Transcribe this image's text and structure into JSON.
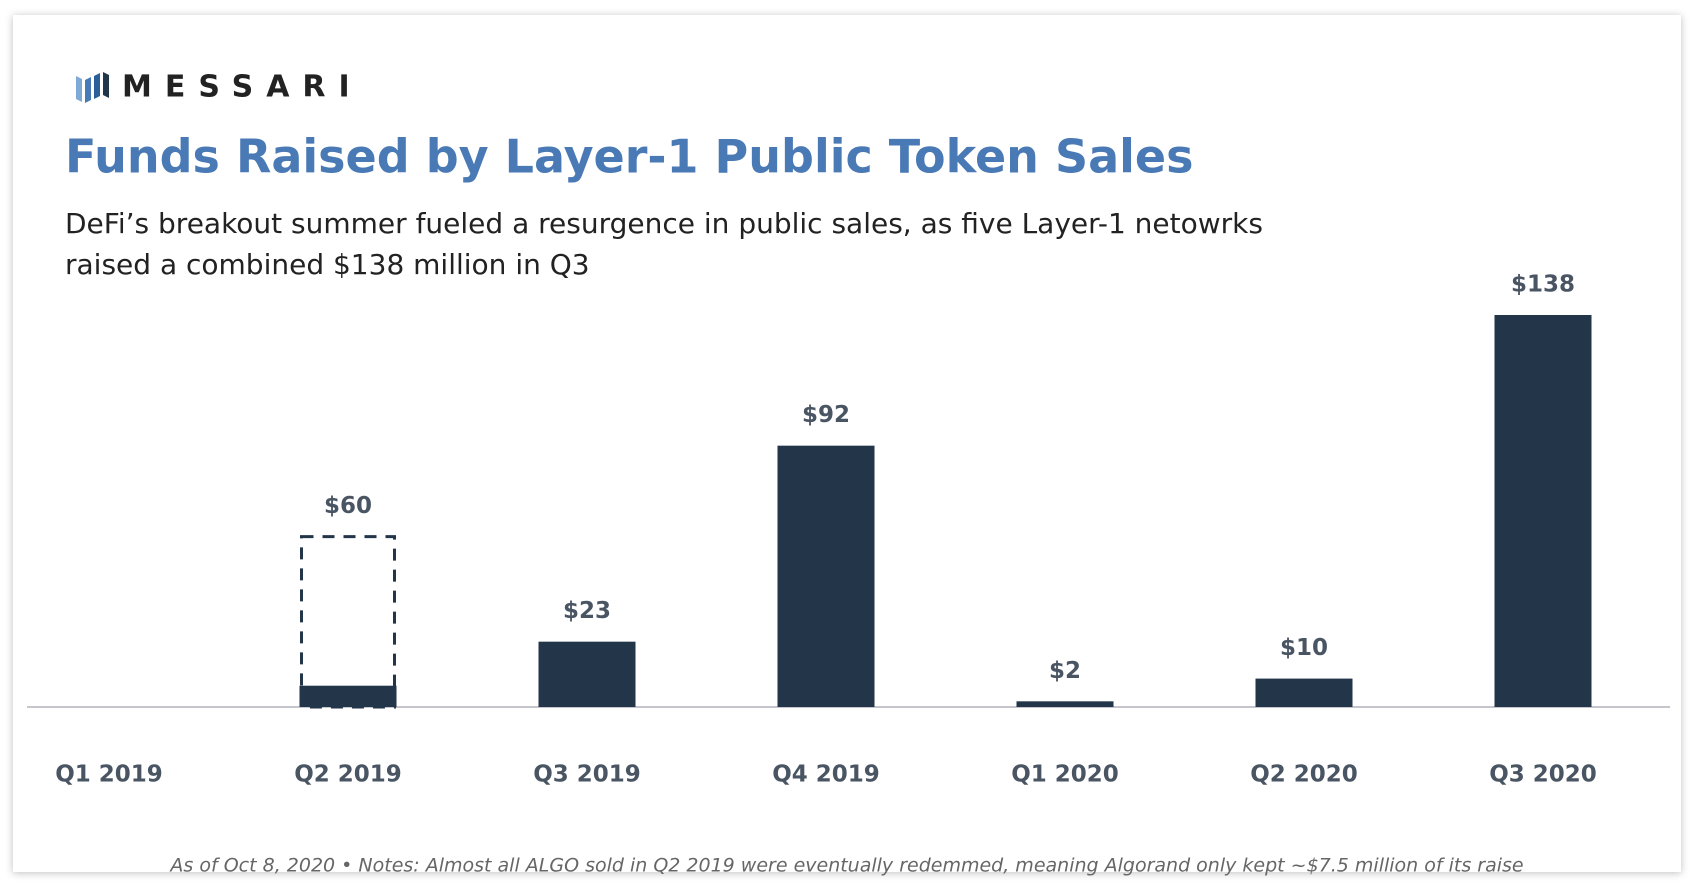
{
  "brand": "MESSARI",
  "chart_data": {
    "type": "bar",
    "title": "Funds Raised by Layer-1 Public Token Sales",
    "subtitle": [
      "DeFi’s breakout summer fueled a resurgence in public sales, as five Layer-1 netowrks",
      "raised a combined $138 million in Q3"
    ],
    "categories": [
      "Q1 2019",
      "Q2 2019",
      "Q3 2019",
      "Q4 2019",
      "Q1 2020",
      "Q2 2020",
      "Q3 2020"
    ],
    "values": [
      null,
      60,
      23,
      92,
      2,
      10,
      138
    ],
    "value_labels": [
      null,
      "$60",
      "$23",
      "$92",
      "$2",
      "$10",
      "$138"
    ],
    "dashed": [
      false,
      true,
      false,
      false,
      false,
      false,
      false
    ],
    "retained": {
      "index": 1,
      "value": 7.5
    },
    "color": "#233649",
    "ylim": [
      0,
      138
    ],
    "footnote": "As of Oct 8, 2020  •  Notes: Almost all ALGO sold in Q2 2019 were eventually redemmed, meaning Algorand only kept ~$7.5 million of its raise"
  }
}
